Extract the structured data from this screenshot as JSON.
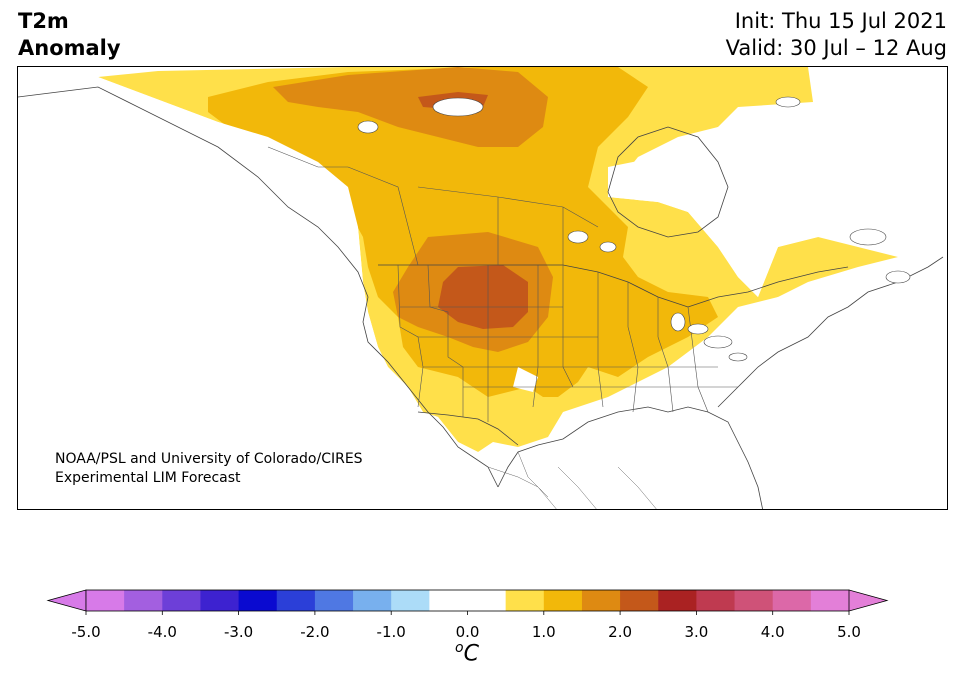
{
  "title": {
    "variable": "T2m\nAnomaly",
    "init": "Init: Thu 15 Jul 2021",
    "valid": "Valid: 30 Jul – 12 Aug"
  },
  "credit": {
    "line1": "NOAA/PSL and University of Colorado/CIRES",
    "line2": "Experimental LIM Forecast"
  },
  "colorbar": {
    "unit_superscript": "o",
    "unit": "C",
    "ticks": [
      "-5.0",
      "-4.0",
      "-3.0",
      "-2.0",
      "-1.0",
      "0.0",
      "1.0",
      "2.0",
      "3.0",
      "4.0",
      "5.0"
    ],
    "levels": [
      -5.0,
      -4.5,
      -4.0,
      -3.5,
      -3.0,
      -2.5,
      -2.0,
      -1.5,
      -1.0,
      -0.5,
      0.5,
      1.0,
      1.5,
      2.0,
      2.5,
      3.0,
      3.5,
      4.0,
      4.5,
      5.0
    ],
    "colors": [
      "#d77ae8",
      "#a35fe0",
      "#6d3fd8",
      "#3d22d0",
      "#0a0ad0",
      "#2b3fd8",
      "#4f78e3",
      "#78b0ee",
      "#acdcf8",
      "#ffffff",
      "#ffe04a",
      "#f2b80a",
      "#de8a12",
      "#c4581a",
      "#aa2222",
      "#bf3a50",
      "#cf5278",
      "#dc68a8",
      "#e37fd8"
    ],
    "extend_low": "#d77ae8",
    "extend_high": "#e37fd8"
  },
  "anomaly_palette": {
    "0.5-1.0": "#ffe04a",
    "1.0-1.5": "#f2b80a",
    "1.5-2.0": "#de8a12",
    "2.0-2.5": "#c4581a"
  }
}
